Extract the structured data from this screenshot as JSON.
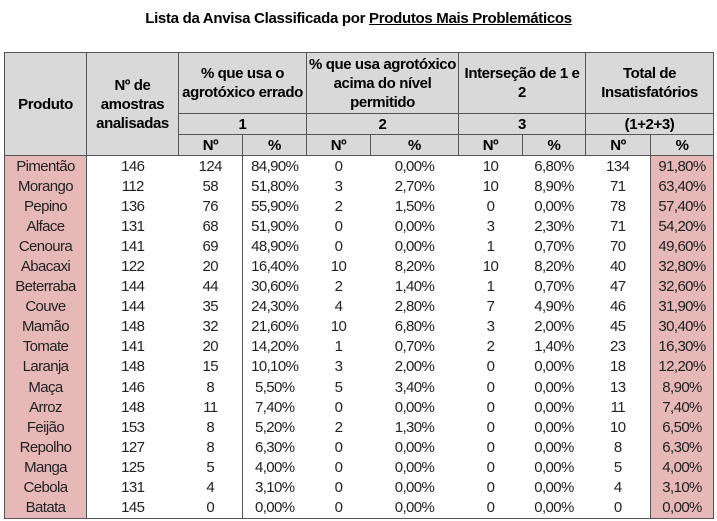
{
  "title_prefix": "Lista da Anvisa Classificada por ",
  "title_underlined": "Produtos Mais Problemáticos",
  "headers": {
    "produto": "Produto",
    "amostras": "Nº de amostras analisadas",
    "group1": "% que usa o agrotóxico errado",
    "group2": "% que usa agrotóxico acima do nível permitido",
    "group3": "Interseção de 1 e 2",
    "group4": "Total de Insatisfatórios",
    "num1": "1",
    "num2": "2",
    "num3": "3",
    "num4": "(1+2+3)",
    "sub_n": "Nº",
    "sub_pct": "%"
  },
  "colors": {
    "header_bg": "#d9d9d9",
    "highlight": "#e6b8b7"
  },
  "rows": [
    [
      "Pimentão",
      "146",
      "124",
      "84,90%",
      "0",
      "0,00%",
      "10",
      "6,80%",
      "134",
      "91,80%"
    ],
    [
      "Morango",
      "112",
      "58",
      "51,80%",
      "3",
      "2,70%",
      "10",
      "8,90%",
      "71",
      "63,40%"
    ],
    [
      "Pepino",
      "136",
      "76",
      "55,90%",
      "2",
      "1,50%",
      "0",
      "0,00%",
      "78",
      "57,40%"
    ],
    [
      "Alface",
      "131",
      "68",
      "51,90%",
      "0",
      "0,00%",
      "3",
      "2,30%",
      "71",
      "54,20%"
    ],
    [
      "Cenoura",
      "141",
      "69",
      "48,90%",
      "0",
      "0,00%",
      "1",
      "0,70%",
      "70",
      "49,60%"
    ],
    [
      "Abacaxi",
      "122",
      "20",
      "16,40%",
      "10",
      "8,20%",
      "10",
      "8,20%",
      "40",
      "32,80%"
    ],
    [
      "Beterraba",
      "144",
      "44",
      "30,60%",
      "2",
      "1,40%",
      "1",
      "0,70%",
      "47",
      "32,60%"
    ],
    [
      "Couve",
      "144",
      "35",
      "24,30%",
      "4",
      "2,80%",
      "7",
      "4,90%",
      "46",
      "31,90%"
    ],
    [
      "Mamão",
      "148",
      "32",
      "21,60%",
      "10",
      "6,80%",
      "3",
      "2,00%",
      "45",
      "30,40%"
    ],
    [
      "Tomate",
      "141",
      "20",
      "14,20%",
      "1",
      "0,70%",
      "2",
      "1,40%",
      "23",
      "16,30%"
    ],
    [
      "Laranja",
      "148",
      "15",
      "10,10%",
      "3",
      "2,00%",
      "0",
      "0,00%",
      "18",
      "12,20%"
    ],
    [
      "Maça",
      "146",
      "8",
      "5,50%",
      "5",
      "3,40%",
      "0",
      "0,00%",
      "13",
      "8,90%"
    ],
    [
      "Arroz",
      "148",
      "11",
      "7,40%",
      "0",
      "0,00%",
      "0",
      "0,00%",
      "11",
      "7,40%"
    ],
    [
      "Feijão",
      "153",
      "8",
      "5,20%",
      "2",
      "1,30%",
      "0",
      "0,00%",
      "10",
      "6,50%"
    ],
    [
      "Repolho",
      "127",
      "8",
      "6,30%",
      "0",
      "0,00%",
      "0",
      "0,00%",
      "8",
      "6,30%"
    ],
    [
      "Manga",
      "125",
      "5",
      "4,00%",
      "0",
      "0,00%",
      "0",
      "0,00%",
      "5",
      "4,00%"
    ],
    [
      "Cebola",
      "131",
      "4",
      "3,10%",
      "0",
      "0,00%",
      "0",
      "0,00%",
      "4",
      "3,10%"
    ],
    [
      "Batata",
      "145",
      "0",
      "0,00%",
      "0",
      "0,00%",
      "0",
      "0,00%",
      "0",
      "0,00%"
    ]
  ]
}
